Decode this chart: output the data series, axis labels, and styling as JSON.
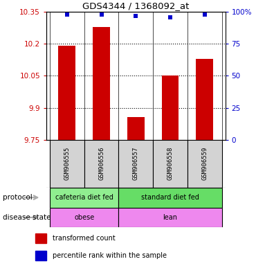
{
  "title": "GDS4344 / 1368092_at",
  "samples": [
    "GSM906555",
    "GSM906556",
    "GSM906557",
    "GSM906558",
    "GSM906559"
  ],
  "bar_values": [
    10.19,
    10.28,
    9.855,
    10.05,
    10.13
  ],
  "percentile_values": [
    98,
    98,
    97,
    96,
    98
  ],
  "ylim_left": [
    9.75,
    10.35
  ],
  "ylim_right": [
    0,
    100
  ],
  "yticks_left": [
    9.75,
    9.9,
    10.05,
    10.2,
    10.35
  ],
  "yticks_right": [
    0,
    25,
    50,
    75,
    100
  ],
  "ytick_labels_left": [
    "9.75",
    "9.9",
    "10.05",
    "10.2",
    "10.35"
  ],
  "ytick_labels_right": [
    "0",
    "25",
    "50",
    "75",
    "100%"
  ],
  "hlines": [
    9.9,
    10.05,
    10.2
  ],
  "bar_color": "#cc0000",
  "dot_color": "#0000cc",
  "left_tick_color": "#cc0000",
  "right_tick_color": "#0000cc",
  "protocol_groups": [
    {
      "label": "cafeteria diet fed",
      "samples": [
        0,
        1
      ],
      "color": "#90ee90"
    },
    {
      "label": "standard diet fed",
      "samples": [
        2,
        3,
        4
      ],
      "color": "#66dd66"
    }
  ],
  "disease_groups": [
    {
      "label": "obese",
      "samples": [
        0,
        1
      ],
      "color": "#ee88ee"
    },
    {
      "label": "lean",
      "samples": [
        2,
        3,
        4
      ],
      "color": "#ee88ee"
    }
  ],
  "bar_width": 0.5,
  "dot_size": 25,
  "dot_marker": "s",
  "legend_items": [
    {
      "label": "transformed count",
      "color": "#cc0000"
    },
    {
      "label": "percentile rank within the sample",
      "color": "#0000cc"
    }
  ],
  "protocol_label": "protocol",
  "disease_label": "disease state",
  "annotation_row_color": "#d3d3d3",
  "arrow_color": "#aaaaaa"
}
